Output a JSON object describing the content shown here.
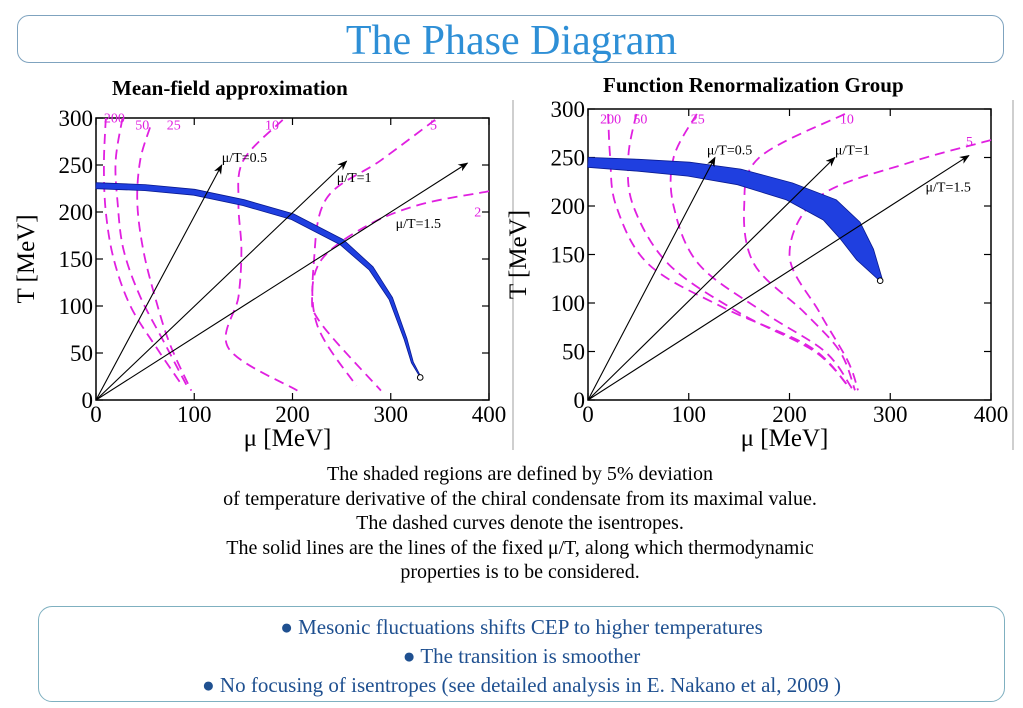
{
  "slide": {
    "title": "The Phase Diagram",
    "left_subtitle": "Mean-field approximation",
    "right_subtitle": "Function Renormalization Group",
    "caption_lines": [
      "The shaded regions are defined by 5% deviation",
      "of temperature derivative of the chiral condensate from its maximal value.",
      "The dashed curves denote the isentropes.",
      "The solid lines are the lines of the fixed μ/T, along which thermodynamic",
      "properties is to be considered."
    ],
    "bullets": [
      "● Mesonic fluctuations shifts CEP  to higher temperatures",
      "● The transition is smoother",
      "● No focusing of isentropes (see detailed analysis in E. Nakano et al, 2009 )"
    ]
  },
  "colors": {
    "title": "#2e8fd6",
    "isentrope": "#e020e0",
    "band": "#1f3fe0",
    "bullets": "#1f5090"
  },
  "chart_data": [
    {
      "type": "line",
      "xlabel": "μ [MeV]",
      "ylabel": "T [MeV]",
      "xlim": [
        0,
        400
      ],
      "ylim": [
        0,
        300
      ],
      "xticks": [
        "0",
        "100",
        "200",
        "300",
        "400"
      ],
      "yticks": [
        "0",
        "50",
        "100",
        "150",
        "200",
        "250",
        "300"
      ],
      "transition_band": {
        "points": [
          [
            0,
            228
          ],
          [
            50,
            226
          ],
          [
            100,
            221
          ],
          [
            150,
            210
          ],
          [
            200,
            195
          ],
          [
            250,
            168
          ],
          [
            280,
            140
          ],
          [
            300,
            108
          ],
          [
            315,
            65
          ],
          [
            322,
            40
          ],
          [
            330,
            25
          ]
        ],
        "width": [
          3,
          3,
          3,
          3,
          3,
          3,
          2.5,
          2,
          1.5,
          1,
          0.5
        ],
        "endpoint": [
          330,
          24
        ]
      },
      "fixed_ratio_lines": [
        {
          "label": "μ/T=0.5",
          "end": [
            128,
            250
          ],
          "label_at": [
            128,
            253
          ]
        },
        {
          "label": "μ/T=1",
          "end": [
            255,
            254
          ],
          "label_at": [
            245,
            232
          ]
        },
        {
          "label": "μ/T=1.5",
          "end": [
            378,
            252
          ],
          "label_at": [
            305,
            183
          ]
        }
      ],
      "isentropes": [
        {
          "label": "200",
          "points": [
            [
              10,
              300
            ],
            [
              8,
              250
            ],
            [
              10,
              200
            ],
            [
              18,
              150
            ],
            [
              35,
              100
            ],
            [
              62,
              55
            ],
            [
              88,
              15
            ]
          ],
          "label_at": [
            8,
            295
          ]
        },
        {
          "label": "50",
          "points": [
            [
              27,
              300
            ],
            [
              20,
              255
            ],
            [
              22,
              210
            ],
            [
              28,
              160
            ],
            [
              45,
              110
            ],
            [
              70,
              60
            ],
            [
              94,
              12
            ]
          ],
          "label_at": [
            40,
            288
          ]
        },
        {
          "label": "25",
          "points": [
            [
              55,
              290
            ],
            [
              45,
              255
            ],
            [
              42,
              210
            ],
            [
              48,
              160
            ],
            [
              60,
              110
            ],
            [
              75,
              60
            ],
            [
              97,
              10
            ]
          ],
          "label_at": [
            72,
            288
          ]
        },
        {
          "label": "10",
          "points": [
            [
              190,
              298
            ],
            [
              150,
              255
            ],
            [
              145,
              210
            ],
            [
              148,
              160
            ],
            [
              145,
              110
            ],
            [
              135,
              55
            ],
            [
              205,
              10
            ]
          ],
          "label_at": [
            172,
            288
          ]
        },
        {
          "label": "5",
          "points": [
            [
              345,
              298
            ],
            [
              290,
              255
            ],
            [
              235,
              215
            ],
            [
              222,
              150
            ],
            [
              225,
              80
            ],
            [
              265,
              15
            ]
          ],
          "label_at": [
            340,
            288
          ]
        },
        {
          "label": "2",
          "points": [
            [
              400,
              222
            ],
            [
              330,
              208
            ],
            [
              275,
              185
            ],
            [
              230,
              150
            ],
            [
              220,
              110
            ],
            [
              230,
              80
            ],
            [
              290,
              10
            ]
          ],
          "label_at": [
            385,
            195
          ]
        }
      ]
    },
    {
      "type": "line",
      "xlabel": "μ [MeV]",
      "ylabel": "T [MeV]",
      "xlim": [
        0,
        400
      ],
      "ylim": [
        0,
        300
      ],
      "xticks": [
        "0",
        "100",
        "200",
        "300",
        "400"
      ],
      "yticks": [
        "0",
        "50",
        "100",
        "150",
        "200",
        "250",
        "300"
      ],
      "transition_band": {
        "points": [
          [
            0,
            245
          ],
          [
            50,
            242
          ],
          [
            100,
            238
          ],
          [
            150,
            230
          ],
          [
            200,
            215
          ],
          [
            240,
            196
          ],
          [
            260,
            175
          ],
          [
            275,
            150
          ],
          [
            290,
            125
          ]
        ],
        "width": [
          5,
          6,
          7,
          8,
          9,
          12,
          13,
          10,
          2
        ],
        "endpoint": [
          290,
          123
        ]
      },
      "fixed_ratio_lines": [
        {
          "label": "μ/T=0.5",
          "end": [
            126,
            250
          ],
          "label_at": [
            118,
            253
          ]
        },
        {
          "label": "μ/T=1",
          "end": [
            245,
            250
          ],
          "label_at": [
            245,
            253
          ]
        },
        {
          "label": "μ/T=1.5",
          "end": [
            378,
            252
          ],
          "label_at": [
            335,
            215
          ]
        }
      ],
      "isentropes": [
        {
          "label": "200",
          "points": [
            [
              20,
              295
            ],
            [
              22,
              250
            ],
            [
              28,
              200
            ],
            [
              60,
              140
            ],
            [
              135,
              95
            ],
            [
              220,
              55
            ],
            [
              258,
              15
            ]
          ],
          "label_at": [
            12,
            285
          ]
        },
        {
          "label": "50",
          "points": [
            [
              48,
              295
            ],
            [
              40,
              250
            ],
            [
              45,
              200
            ],
            [
              80,
              140
            ],
            [
              150,
              90
            ],
            [
              225,
              50
            ],
            [
              260,
              12
            ]
          ],
          "label_at": [
            45,
            285
          ]
        },
        {
          "label": "25",
          "points": [
            [
              108,
              295
            ],
            [
              85,
              250
            ],
            [
              85,
              200
            ],
            [
              110,
              140
            ],
            [
              175,
              90
            ],
            [
              235,
              50
            ],
            [
              262,
              12
            ]
          ],
          "label_at": [
            102,
            285
          ]
        },
        {
          "label": "10",
          "points": [
            [
              255,
              295
            ],
            [
              170,
              250
            ],
            [
              155,
              200
            ],
            [
              165,
              140
            ],
            [
              215,
              90
            ],
            [
              250,
              50
            ],
            [
              265,
              10
            ]
          ],
          "label_at": [
            250,
            285
          ]
        },
        {
          "label": "5",
          "points": [
            [
              400,
              268
            ],
            [
              320,
              245
            ],
            [
              230,
              210
            ],
            [
              200,
              150
            ],
            [
              230,
              90
            ],
            [
              258,
              40
            ],
            [
              268,
              10
            ]
          ],
          "label_at": [
            375,
            262
          ]
        }
      ]
    }
  ]
}
